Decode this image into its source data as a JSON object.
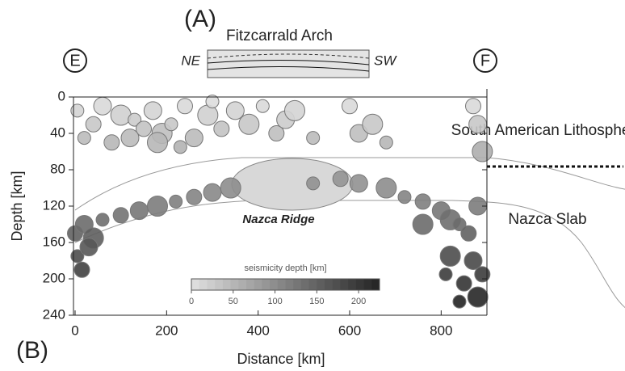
{
  "chart_data": {
    "type": "scatter",
    "panel_a_label": "(A)",
    "panel_a_title": "Fitzcarrald Arch",
    "left_end": "NE",
    "right_end": "SW",
    "left_marker": "E",
    "right_marker": "F",
    "panel_b_label": "(B)",
    "x_label": "Distance [km]",
    "y_label": "Depth [km]",
    "annotations": [
      "South American Lithosphere",
      "Nazca Slab",
      "Nazca Ridge"
    ],
    "x": [
      5,
      40,
      60,
      100,
      130,
      150,
      170,
      190,
      210,
      240,
      260,
      290,
      300,
      320,
      350,
      380,
      410,
      440,
      460,
      480,
      520,
      600,
      620,
      650,
      680,
      870,
      880,
      890,
      20,
      80,
      120,
      180,
      230,
      0,
      20,
      40,
      60,
      100,
      140,
      180,
      220,
      260,
      300,
      340,
      520,
      580,
      620,
      680,
      720,
      760,
      800,
      820,
      840,
      860,
      880,
      760,
      5,
      15,
      30,
      820,
      810,
      850,
      870,
      880,
      840,
      890
    ],
    "values": [
      15,
      30,
      10,
      20,
      25,
      35,
      15,
      40,
      30,
      10,
      45,
      20,
      5,
      35,
      15,
      30,
      10,
      40,
      25,
      15,
      45,
      10,
      40,
      30,
      50,
      10,
      30,
      60,
      45,
      50,
      45,
      50,
      55,
      150,
      140,
      155,
      135,
      130,
      125,
      120,
      115,
      110,
      105,
      100,
      95,
      90,
      95,
      100,
      110,
      115,
      125,
      135,
      140,
      150,
      120,
      140,
      175,
      190,
      165,
      175,
      195,
      205,
      180,
      220,
      225,
      195
    ],
    "xlim": [
      0,
      900
    ],
    "ylim": [
      240,
      0
    ],
    "xticks": [
      0,
      200,
      400,
      600,
      800
    ],
    "yticks": [
      0,
      40,
      80,
      120,
      160,
      200,
      240
    ],
    "colorbar": {
      "label": "seismicity depth [km]",
      "lim": [
        0,
        225
      ],
      "ticks": [
        0,
        50,
        100,
        150,
        200
      ]
    }
  }
}
